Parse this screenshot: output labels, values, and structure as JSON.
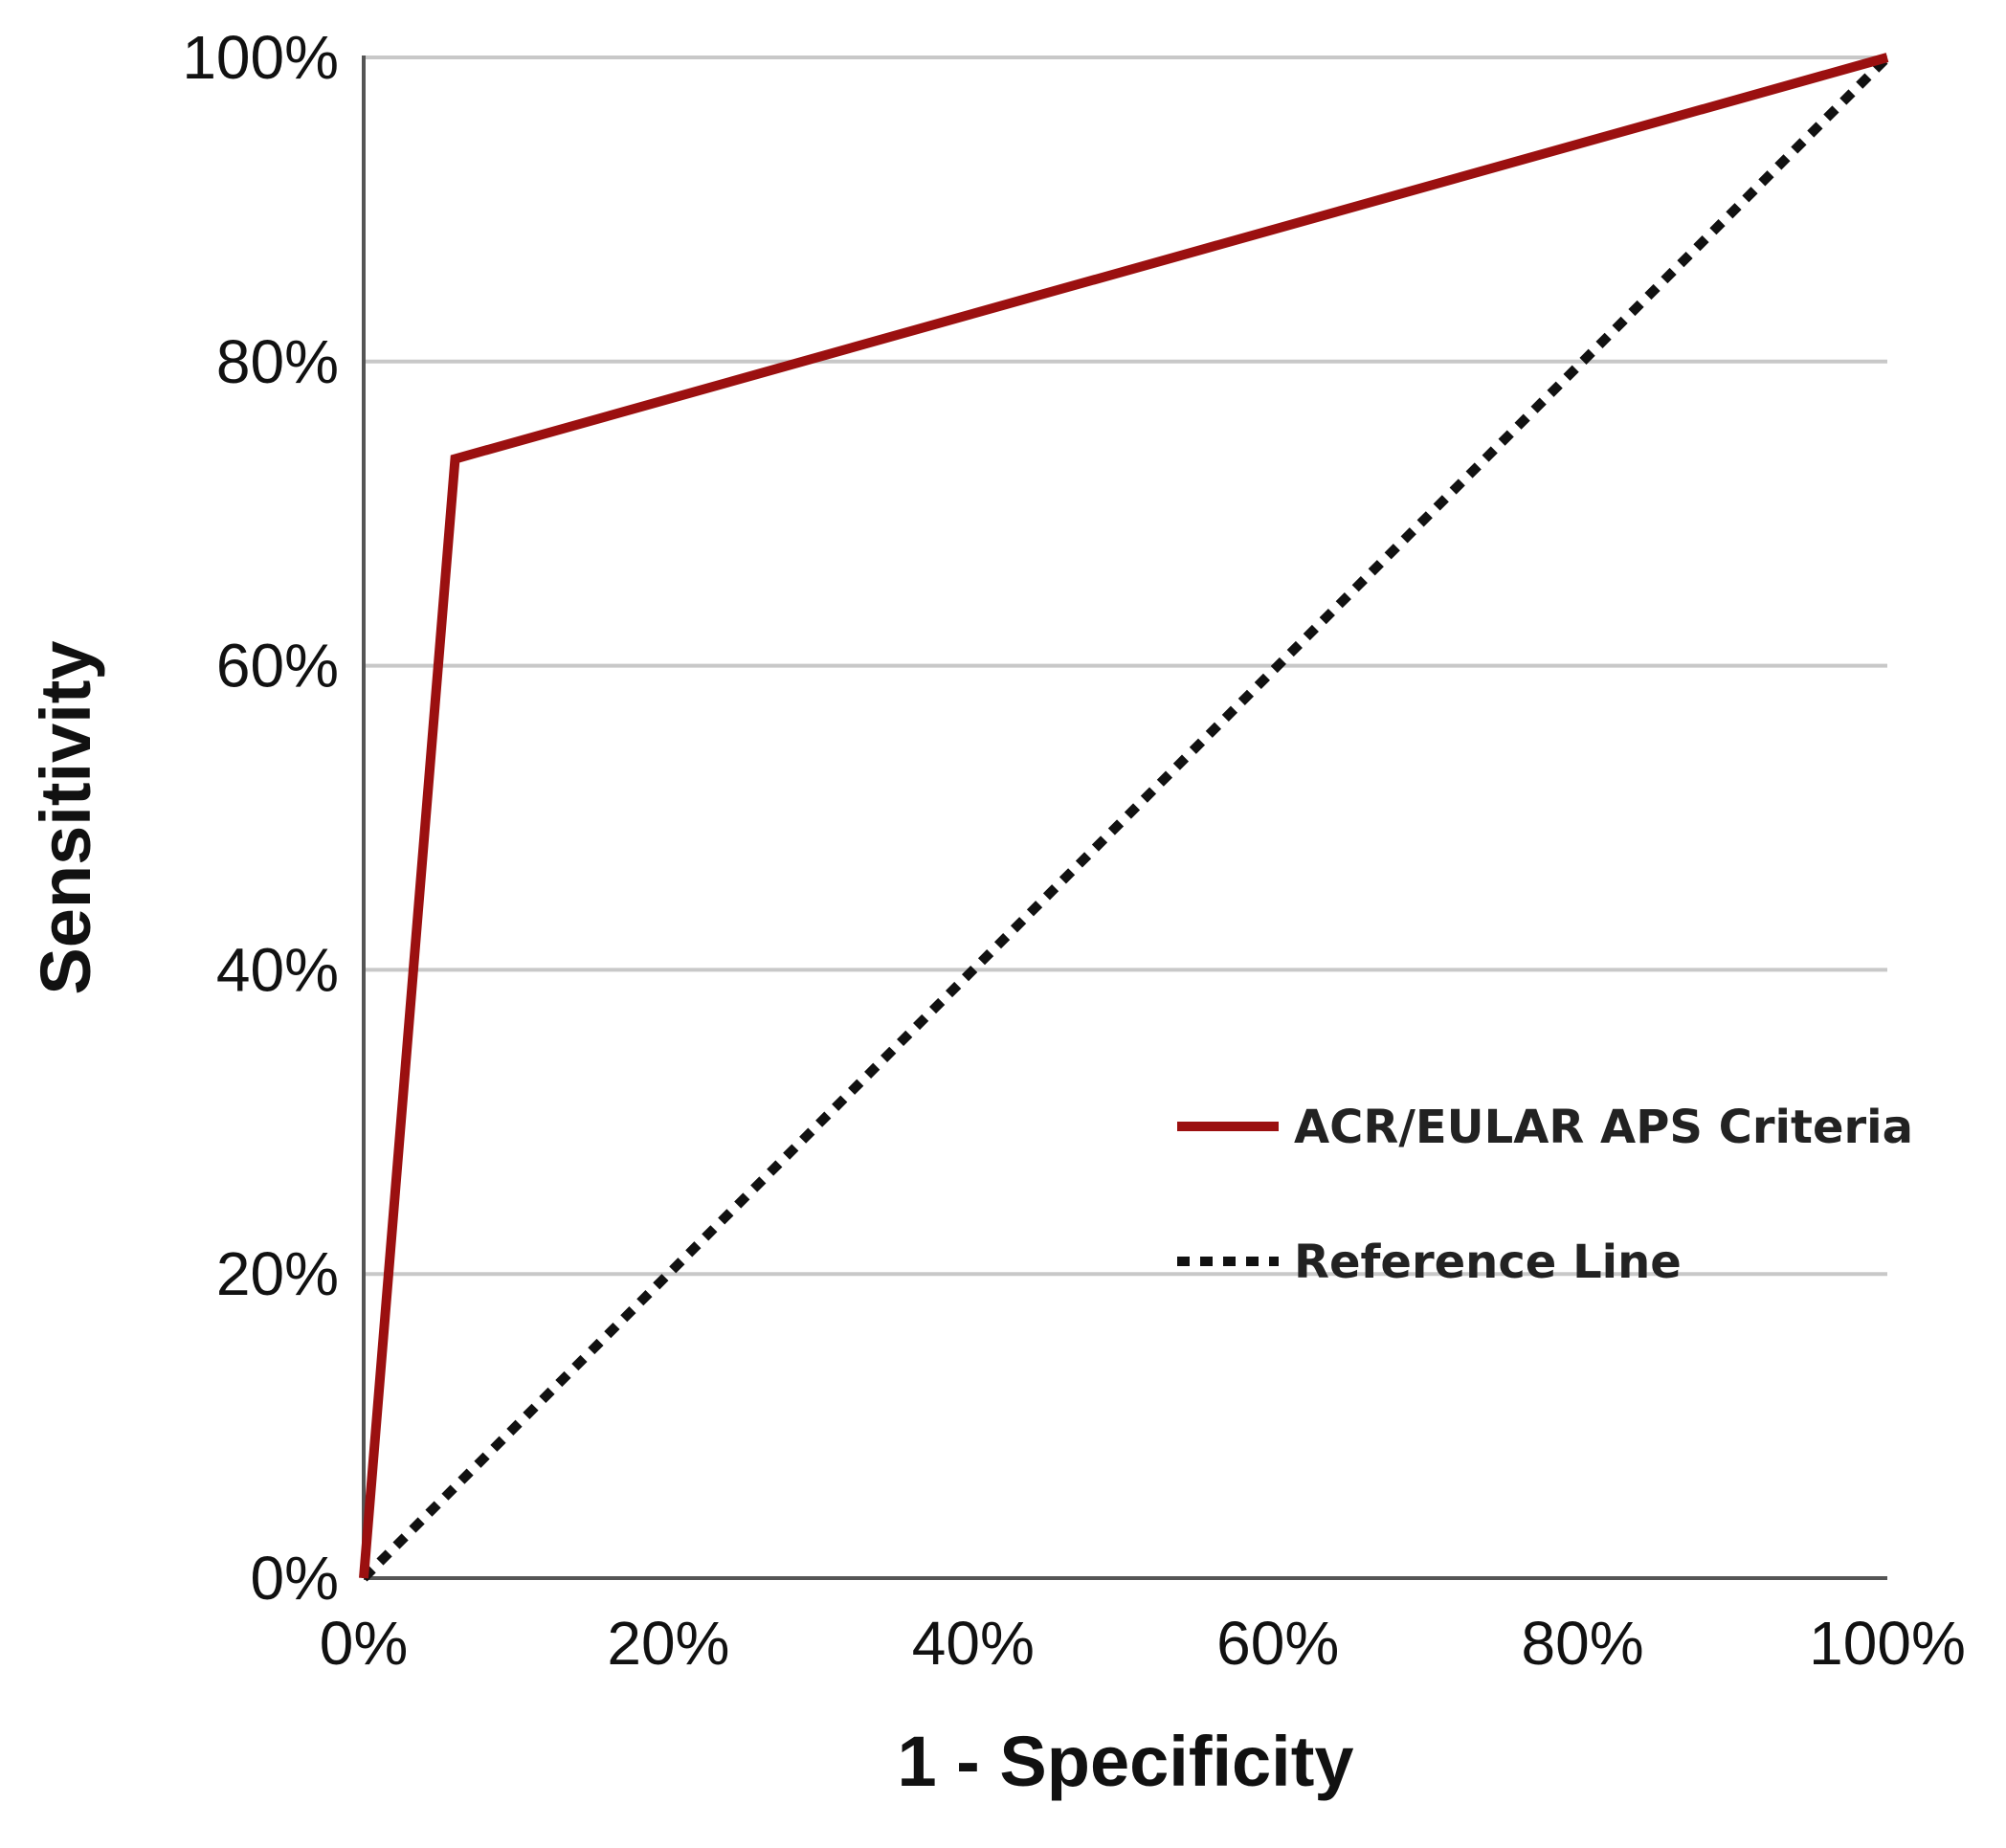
{
  "chart_data": {
    "type": "line",
    "title": "",
    "xlabel": "1 - Specificity",
    "ylabel": "Sensitivity",
    "xlim": [
      0,
      100
    ],
    "ylim": [
      0,
      100
    ],
    "x_ticks": [
      "0%",
      "20%",
      "40%",
      "60%",
      "80%",
      "100%"
    ],
    "y_ticks": [
      "0%",
      "20%",
      "40%",
      "60%",
      "80%",
      "100%"
    ],
    "grid": "horizontal",
    "legend_position": "lower-right",
    "series": [
      {
        "name": "ACR/EULAR APS Criteria",
        "color": "#9b1010",
        "style": "solid",
        "x": [
          0,
          6,
          100
        ],
        "y": [
          0,
          73.6,
          100
        ]
      },
      {
        "name": "Reference Line",
        "color": "#111111",
        "style": "dotted",
        "x": [
          0,
          100
        ],
        "y": [
          0,
          100
        ]
      }
    ]
  }
}
